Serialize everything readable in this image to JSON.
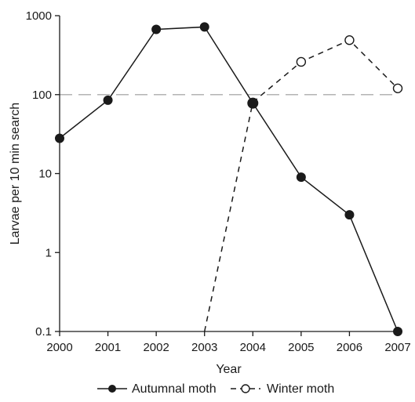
{
  "chart_data": {
    "type": "line",
    "xlabel": "Year",
    "ylabel": "Larvae per 10 min search",
    "x": [
      "2000",
      "2001",
      "2002",
      "2003",
      "2004",
      "2005",
      "2006",
      "2007"
    ],
    "y_scale": "log",
    "ylim": [
      0.1,
      1000
    ],
    "y_ticks": [
      "0.1",
      "1",
      "10",
      "100",
      "1000"
    ],
    "reference_line": {
      "y": 100,
      "style": "dashed",
      "color": "#b3b3b3"
    },
    "legend_position": "bottom",
    "series": [
      {
        "name": "Autumnal moth",
        "marker": "filled-circle",
        "line_style": "solid",
        "color": "#1a1a1a",
        "values": [
          28,
          85,
          670,
          720,
          78,
          9,
          3,
          0.1
        ]
      },
      {
        "name": "Winter moth",
        "marker": "open-circle",
        "line_style": "dashed",
        "color": "#1a1a1a",
        "x_start": "2003",
        "values": [
          null,
          null,
          null,
          0.1,
          80,
          260,
          490,
          120
        ],
        "visible_markers_from": "2005"
      }
    ]
  }
}
